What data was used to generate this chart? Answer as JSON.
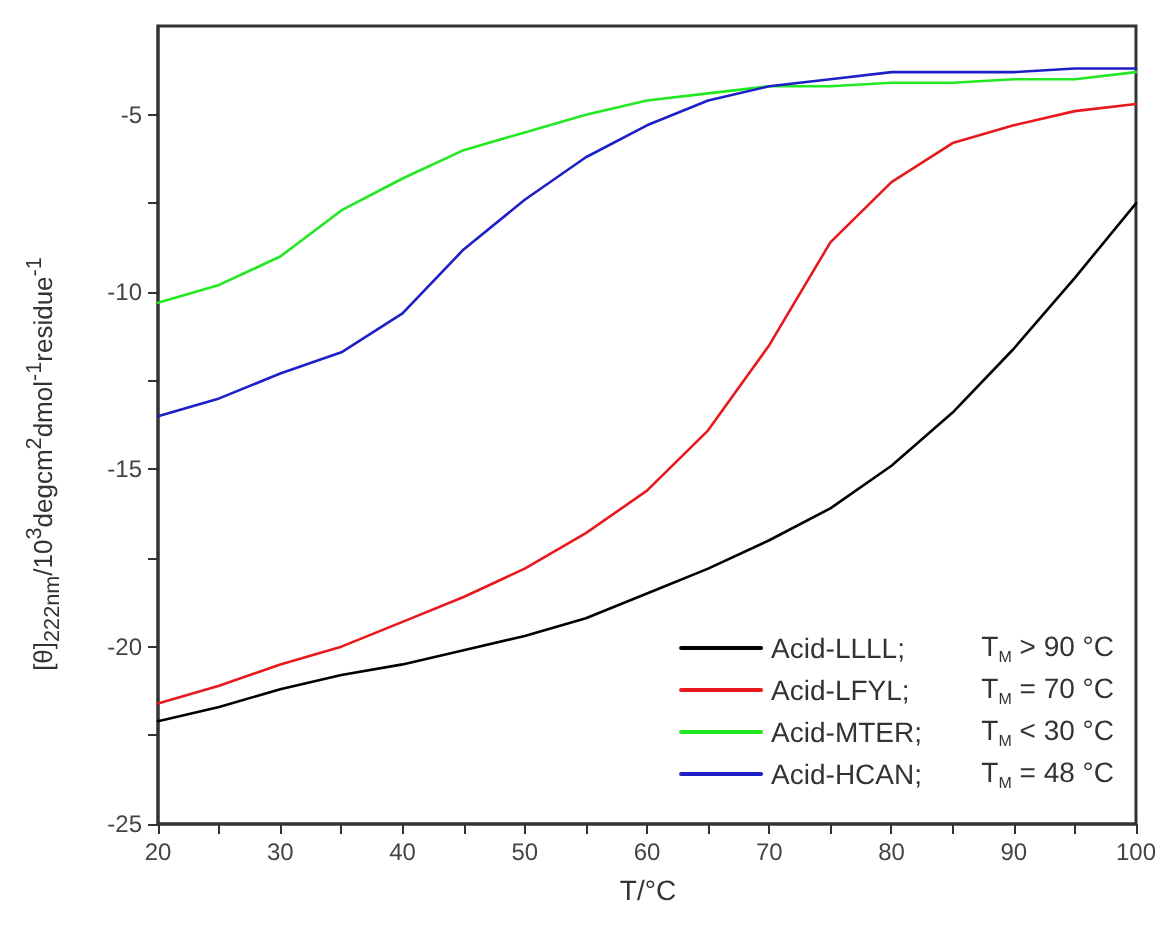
{
  "chart_data": {
    "type": "line",
    "xlabel": "T/°C",
    "ylabel": "[θ]$_{222nm}$/10$^{3}$degcm$^{2}$dmol$^{-1}$residue$^{-1}$",
    "x": [
      20,
      25,
      30,
      35,
      40,
      45,
      50,
      55,
      60,
      65,
      70,
      75,
      80,
      85,
      90,
      95,
      100
    ],
    "xlim": [
      20,
      100
    ],
    "ylim": [
      -25,
      -2.5
    ],
    "xticks": [
      20,
      {
        "value": 25,
        "label": null
      },
      30,
      {
        "value": 35,
        "label": null
      },
      40,
      {
        "value": 45,
        "label": null
      },
      50,
      {
        "value": 55,
        "label": null
      },
      60,
      {
        "value": 65,
        "label": null
      },
      70,
      {
        "value": 75,
        "label": null
      },
      80,
      {
        "value": 85,
        "label": null
      },
      90,
      {
        "value": 95,
        "label": null
      },
      100
    ],
    "yticks": [
      -25,
      {
        "value": -22.5,
        "label": null
      },
      -20,
      {
        "value": -17.5,
        "label": null
      },
      -15,
      {
        "value": -12.5,
        "label": null
      },
      -10,
      {
        "value": -7.5,
        "label": null
      },
      -5
    ],
    "annotations": [
      "T$_{M}$ > 90 °C",
      "T$_{M}$ = 70 °C",
      "T$_{M}$ < 30 °C",
      "T$_{M}$ = 48 °C"
    ],
    "grid": false,
    "legend": "bottom right",
    "marker": "none",
    "line_style": "solid",
    "series": [
      {
        "name": "Acid-LLLL;",
        "color": "#000000",
        "values": [
          -22.1,
          -21.7,
          -21.2,
          -20.8,
          -20.5,
          -20.1,
          -19.7,
          -19.2,
          -18.5,
          -17.8,
          -17.0,
          -16.1,
          -14.9,
          -13.4,
          -11.6,
          -9.6,
          -7.5
        ]
      },
      {
        "name": "Acid-LFYL;",
        "color": "#e8191c",
        "values": [
          -21.6,
          -21.1,
          -20.5,
          -20.0,
          -19.3,
          -18.6,
          -17.8,
          -16.8,
          -15.6,
          -13.9,
          -11.5,
          -8.6,
          -6.9,
          -5.8,
          -5.3,
          -4.9,
          -4.7
        ]
      },
      {
        "name": "Acid-MTER;",
        "color": "#22e822",
        "values": [
          -10.3,
          -9.8,
          -9.0,
          -7.7,
          -6.8,
          -6.0,
          -5.5,
          -5.0,
          -4.6,
          -4.4,
          -4.2,
          -4.2,
          -4.1,
          -4.1,
          -4.0,
          -4.0,
          -3.8
        ]
      },
      {
        "name": "Acid-HCAN;",
        "color": "#1f1fc8",
        "values": [
          -13.5,
          -13.0,
          -12.3,
          -11.7,
          -10.6,
          -8.8,
          -7.4,
          -6.2,
          -5.3,
          -4.6,
          -4.2,
          -4.0,
          -3.8,
          -3.8,
          -3.8,
          -3.7,
          -3.7
        ]
      }
    ]
  }
}
